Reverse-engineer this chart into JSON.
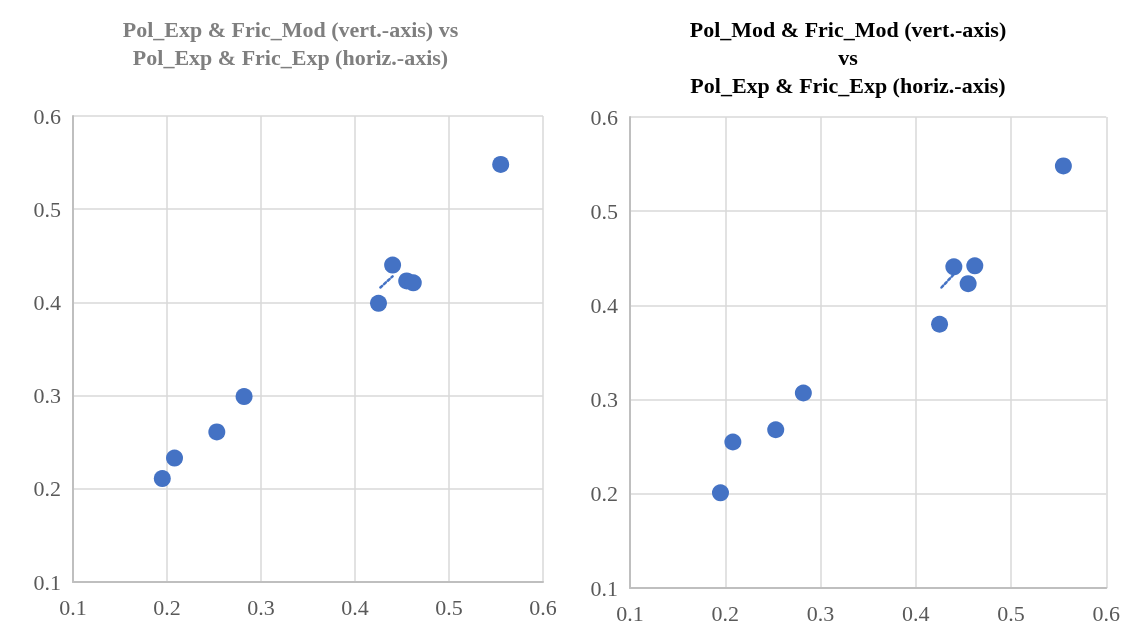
{
  "chart_data": [
    {
      "type": "scatter",
      "title": "Pol_Exp & Fric_Mod (vert.-axis) vs\nPol_Exp & Fric_Exp (horiz.-axis)",
      "series": [
        {
          "color": "#4472c4",
          "x": [
            0.195,
            0.208,
            0.253,
            0.282,
            0.425,
            0.44,
            0.455,
            0.462,
            0.555
          ],
          "values": [
            0.211,
            0.233,
            0.261,
            0.299,
            0.399,
            0.44,
            0.423,
            0.421,
            0.548
          ]
        },
        {
          "type": "line",
          "color": "#4472c4",
          "x": [
            0.427,
            0.44
          ],
          "values": [
            0.416,
            0.428
          ],
          "line_style": "dotted",
          "marker": "none"
        }
      ],
      "xlim": [
        0.1,
        0.6
      ],
      "xticks": [
        0.1,
        0.2,
        0.3,
        0.4,
        0.5,
        0.6
      ],
      "ylim": [
        0.1,
        0.6
      ],
      "yticks": [
        0.1,
        0.2,
        0.3,
        0.4,
        0.5,
        0.6
      ],
      "grid": true,
      "marker": "circle"
    },
    {
      "type": "scatter",
      "title": "Pol_Mod & Fric_Mod (vert.-axis)\nvs\nPol_Exp & Fric_Exp (horiz.-axis)",
      "series": [
        {
          "color": "#4472c4",
          "x": [
            0.195,
            0.208,
            0.253,
            0.282,
            0.425,
            0.44,
            0.462,
            0.455,
            0.555
          ],
          "values": [
            0.201,
            0.255,
            0.268,
            0.307,
            0.38,
            0.441,
            0.442,
            0.423,
            0.548
          ]
        },
        {
          "type": "line",
          "color": "#4472c4",
          "x": [
            0.427,
            0.44
          ],
          "values": [
            0.419,
            0.433
          ],
          "line_style": "dotted",
          "marker": "none"
        }
      ],
      "xlim": [
        0.1,
        0.6
      ],
      "xticks": [
        0.1,
        0.2,
        0.3,
        0.4,
        0.5,
        0.6
      ],
      "ylim": [
        0.1,
        0.6
      ],
      "yticks": [
        0.1,
        0.2,
        0.3,
        0.4,
        0.5,
        0.6
      ],
      "grid": true,
      "marker": "circle"
    }
  ]
}
